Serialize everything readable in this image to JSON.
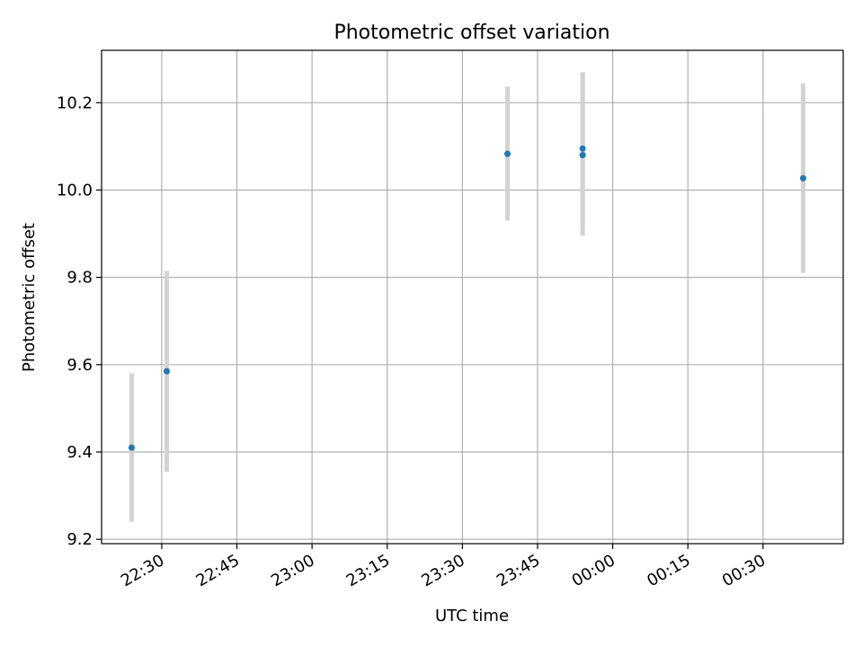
{
  "chart_data": {
    "type": "scatter",
    "title": "Photometric offset variation",
    "xlabel": "UTC time",
    "ylabel": "Photometric offset",
    "grid": true,
    "legend": "none",
    "x_ticks": [
      "22:30",
      "22:45",
      "23:00",
      "23:15",
      "23:30",
      "23:45",
      "00:00",
      "00:15",
      "00:30"
    ],
    "y_ticks": [
      "9.2",
      "9.4",
      "9.6",
      "9.8",
      "10.0",
      "10.2"
    ],
    "xlim": [
      "22:18",
      "00:46"
    ],
    "ylim": [
      9.19,
      10.32
    ],
    "series": [
      {
        "marker_color": "#1f77b4",
        "errorbar_color": "#d3d3d3",
        "points": [
          {
            "time": "22:24",
            "y": 9.41,
            "err_low": 9.24,
            "err_high": 9.58
          },
          {
            "time": "22:31",
            "y": 9.585,
            "err_low": 9.355,
            "err_high": 9.815
          },
          {
            "time": "23:39",
            "y": 10.083,
            "err_low": 9.93,
            "err_high": 10.237
          },
          {
            "time": "23:54",
            "y": 10.095,
            "err_low": 9.92,
            "err_high": 10.27
          },
          {
            "time": "23:54",
            "y": 10.08,
            "err_low": 9.895,
            "err_high": 10.265
          },
          {
            "time": "00:38",
            "y": 10.027,
            "err_low": 9.81,
            "err_high": 10.244
          }
        ]
      }
    ]
  }
}
